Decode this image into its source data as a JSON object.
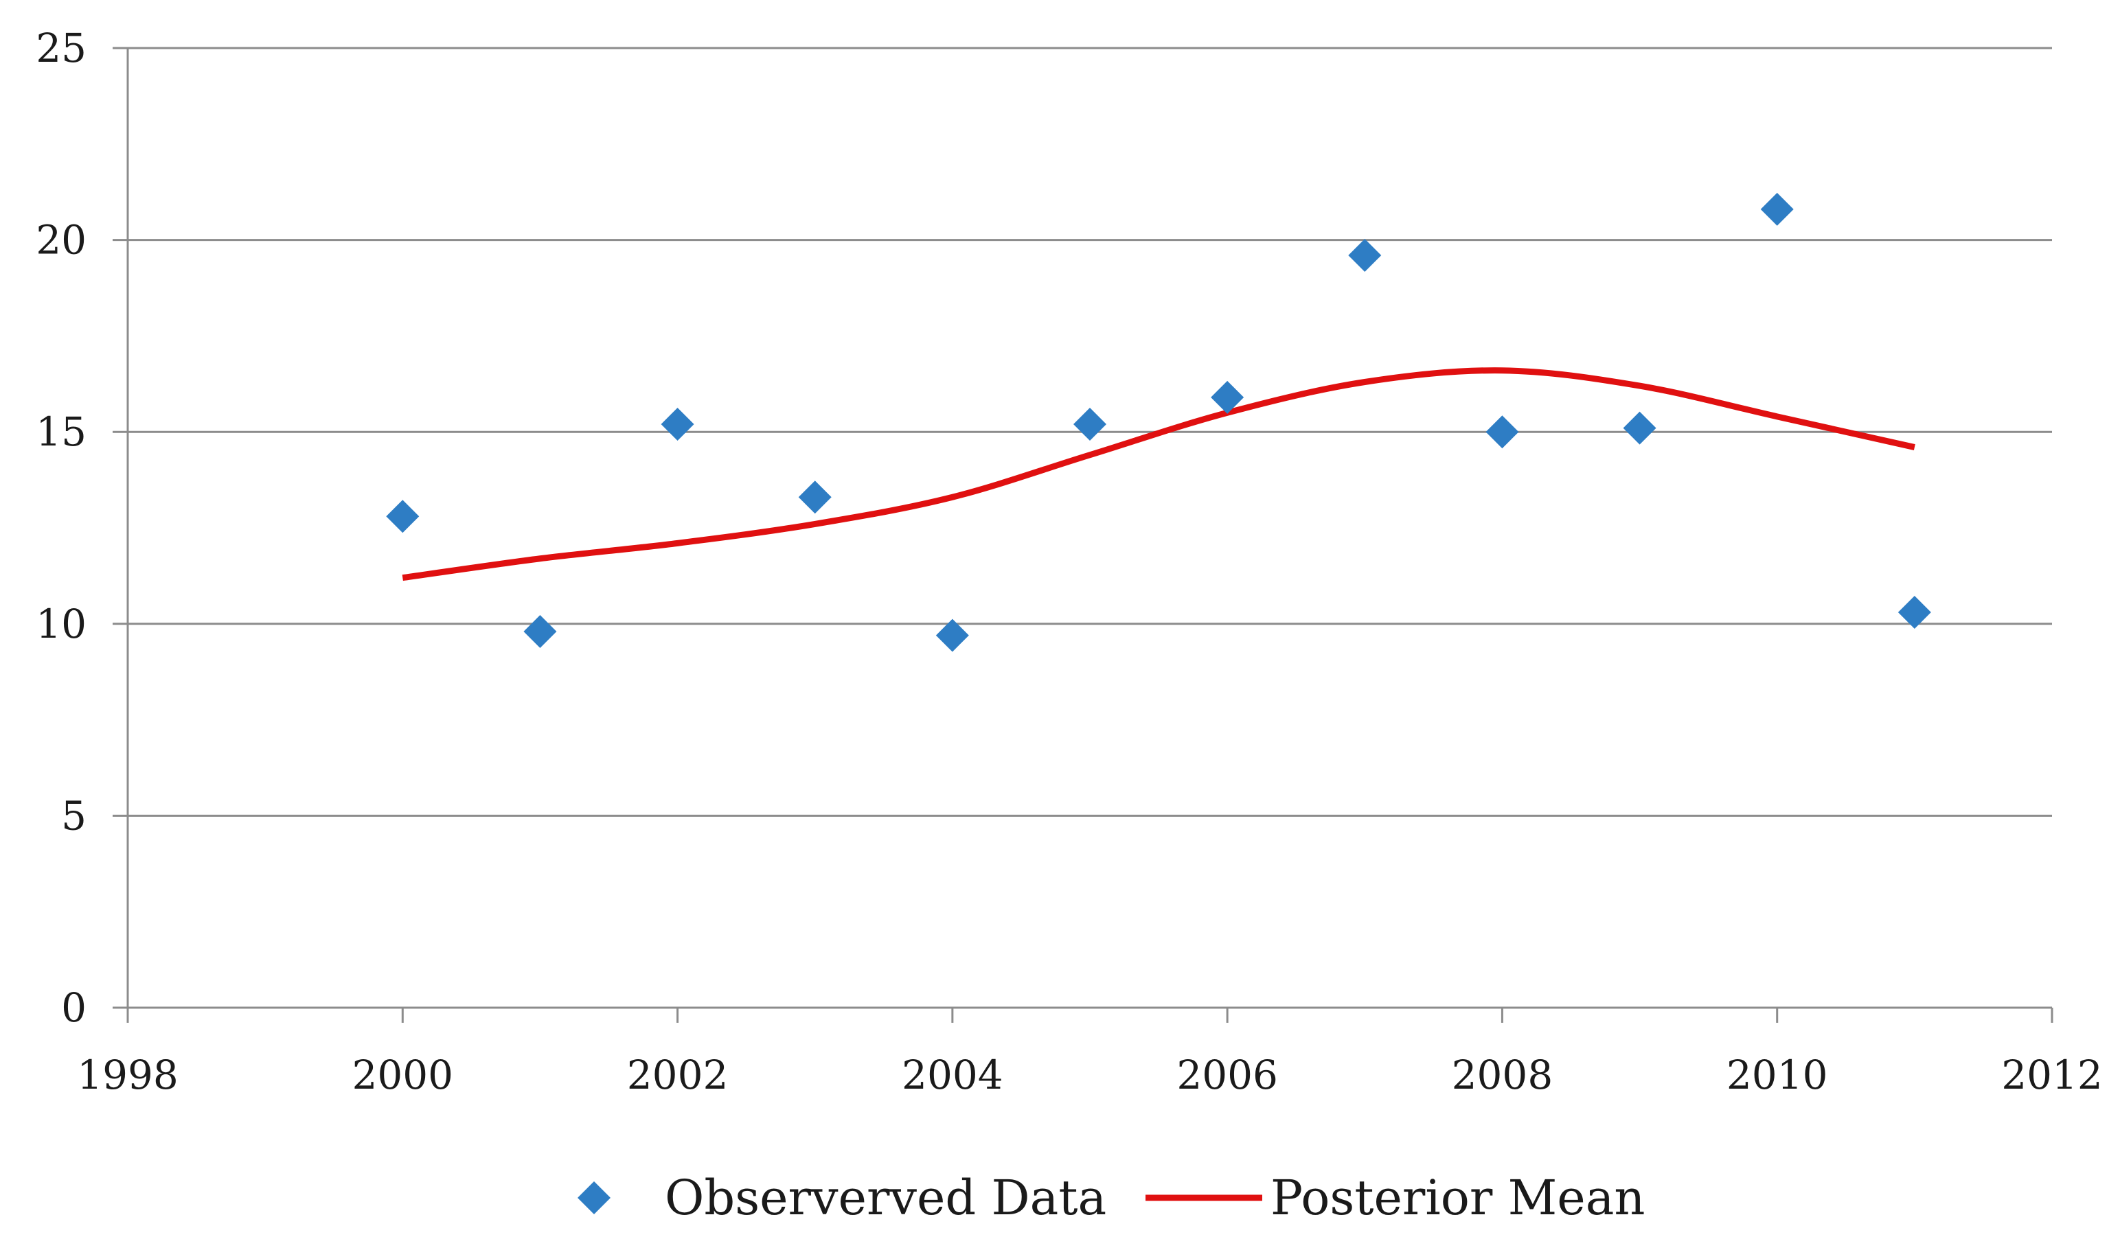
{
  "chart_data": {
    "type": "scatter",
    "title": "",
    "xlabel": "",
    "ylabel": "",
    "xlim": [
      1998,
      2012
    ],
    "ylim": [
      0,
      25
    ],
    "x_ticks": [
      1998,
      2000,
      2002,
      2004,
      2006,
      2008,
      2010,
      2012
    ],
    "y_ticks": [
      0,
      5,
      10,
      15,
      20,
      25
    ],
    "x_tick_labels": [
      "1998",
      "2000",
      "2002",
      "2004",
      "2006",
      "2008",
      "2010",
      "2012"
    ],
    "y_tick_labels": [
      "0",
      "5",
      "10",
      "15",
      "20",
      "25"
    ],
    "grid": {
      "horizontal": true,
      "vertical": false
    },
    "legend_position": "bottom",
    "series": [
      {
        "name": "Observerved Data",
        "type": "scatter",
        "marker": "diamond",
        "color": "#2E7DC4",
        "x": [
          2000,
          2001,
          2002,
          2003,
          2004,
          2005,
          2006,
          2007,
          2008,
          2009,
          2010,
          2011
        ],
        "y": [
          12.8,
          9.8,
          15.2,
          13.3,
          9.7,
          15.2,
          15.9,
          19.6,
          15.0,
          15.1,
          20.8,
          10.3
        ]
      },
      {
        "name": "Posterior Mean",
        "type": "line",
        "color": "#E01010",
        "x": [
          2000,
          2001,
          2002,
          2003,
          2004,
          2005,
          2006,
          2007,
          2008,
          2009,
          2010,
          2011
        ],
        "y": [
          11.2,
          11.7,
          12.1,
          12.6,
          13.3,
          14.4,
          15.5,
          16.3,
          16.6,
          16.2,
          15.4,
          14.6
        ]
      }
    ]
  }
}
